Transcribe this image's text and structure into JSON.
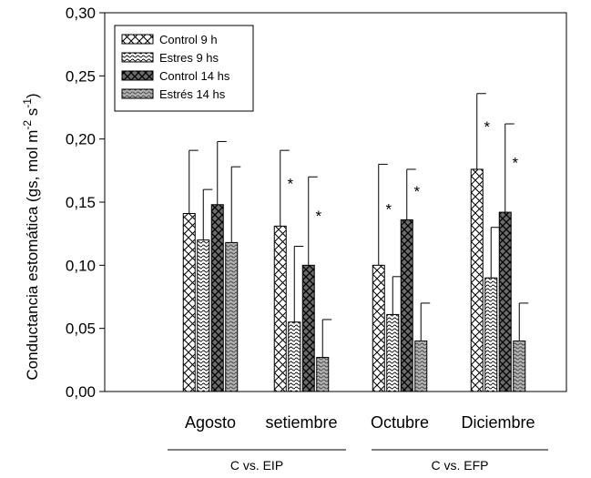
{
  "chart_data": {
    "type": "bar",
    "ylabel": {
      "main": "Conductancia estomática (gs, mol m",
      "exp1": "-2",
      "mid": " s",
      "exp2": "-1",
      "end": ")"
    },
    "ylim": [
      0,
      0.3
    ],
    "yticks": [
      "0,00",
      "0,05",
      "0,10",
      "0,15",
      "0,20",
      "0,25",
      "0,30"
    ],
    "categories": [
      "Agosto",
      "setiembre",
      "Octubre",
      "Diciembre"
    ],
    "groups": [
      {
        "label": "C vs. EIP"
      },
      {
        "label": "C vs. EFP"
      }
    ],
    "legend_position": "top-left",
    "series": [
      {
        "name": "Control 9 h",
        "pattern": "crosshatch-light",
        "values": [
          0.141,
          0.131,
          0.1,
          0.176
        ],
        "errors": [
          0.05,
          0.06,
          0.08,
          0.06
        ],
        "stars": [
          false,
          true,
          true,
          true
        ]
      },
      {
        "name": "Estres 9 hs",
        "pattern": "wavy-light",
        "values": [
          0.12,
          0.055,
          0.061,
          0.09
        ],
        "errors": [
          0.04,
          0.06,
          0.03,
          0.04
        ],
        "stars": [
          false,
          false,
          false,
          false
        ]
      },
      {
        "name": "Control 14 hs",
        "pattern": "crosshatch-dark",
        "values": [
          0.148,
          0.1,
          0.136,
          0.142
        ],
        "errors": [
          0.05,
          0.07,
          0.04,
          0.07
        ],
        "stars": [
          false,
          true,
          true,
          true
        ]
      },
      {
        "name": "Estrés 14 hs",
        "pattern": "wavy-dark",
        "values": [
          0.118,
          0.027,
          0.04,
          0.04
        ],
        "errors": [
          0.06,
          0.03,
          0.03,
          0.03
        ],
        "stars": [
          false,
          false,
          false,
          false
        ]
      }
    ],
    "star_symbol": "*"
  }
}
